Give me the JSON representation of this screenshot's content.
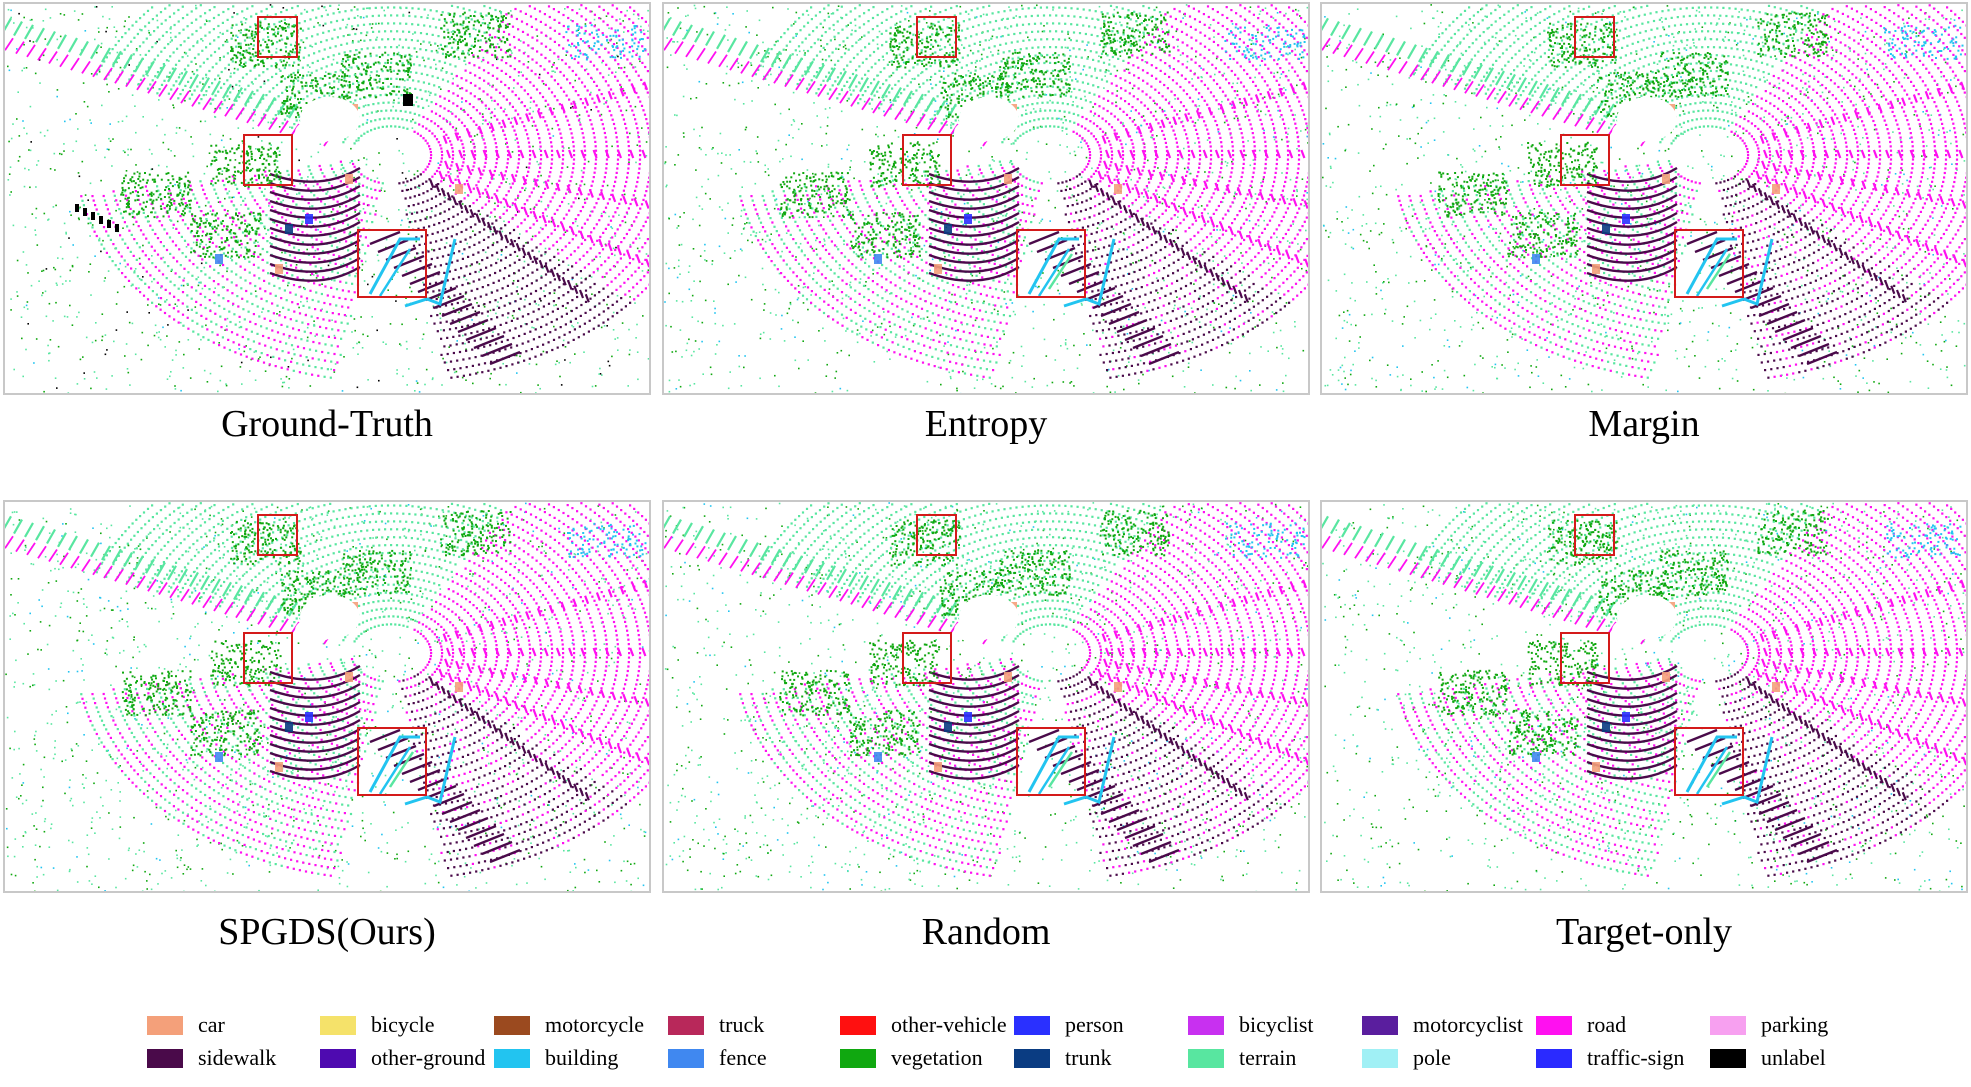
{
  "panels": [
    {
      "label": "Ground-Truth",
      "variant": "gt"
    },
    {
      "label": "Entropy",
      "variant": "entropy"
    },
    {
      "label": "Margin",
      "variant": "margin"
    },
    {
      "label": "SPGDS(Ours)",
      "variant": "ours"
    },
    {
      "label": "Random",
      "variant": "random"
    },
    {
      "label": "Target-only",
      "variant": "target"
    }
  ],
  "legend": [
    {
      "label": "car",
      "color": "#f4a07a"
    },
    {
      "label": "bicycle",
      "color": "#f5e26a"
    },
    {
      "label": "motorcycle",
      "color": "#9b4a1f"
    },
    {
      "label": "truck",
      "color": "#b8285a"
    },
    {
      "label": "other-vehicle",
      "color": "#ff1010"
    },
    {
      "label": "person",
      "color": "#2a30ff"
    },
    {
      "label": "bicyclist",
      "color": "#c830f0"
    },
    {
      "label": "motorcyclist",
      "color": "#5a1e9e"
    },
    {
      "label": "road",
      "color": "#ff10f0"
    },
    {
      "label": "parking",
      "color": "#f7a0f0"
    },
    {
      "label": "sidewalk",
      "color": "#4a0a4a"
    },
    {
      "label": "other-ground",
      "color": "#4e0ab0"
    },
    {
      "label": "building",
      "color": "#22c4f0"
    },
    {
      "label": "fence",
      "color": "#4088f0"
    },
    {
      "label": "vegetation",
      "color": "#10a810"
    },
    {
      "label": "trunk",
      "color": "#0a3c82"
    },
    {
      "label": "terrain",
      "color": "#58e6a0"
    },
    {
      "label": "pole",
      "color": "#a0f0f5"
    },
    {
      "label": "traffic-sign",
      "color": "#2a2aff"
    },
    {
      "label": "unlabel",
      "color": "#000000"
    }
  ],
  "highlight_color": "#d41a1a"
}
